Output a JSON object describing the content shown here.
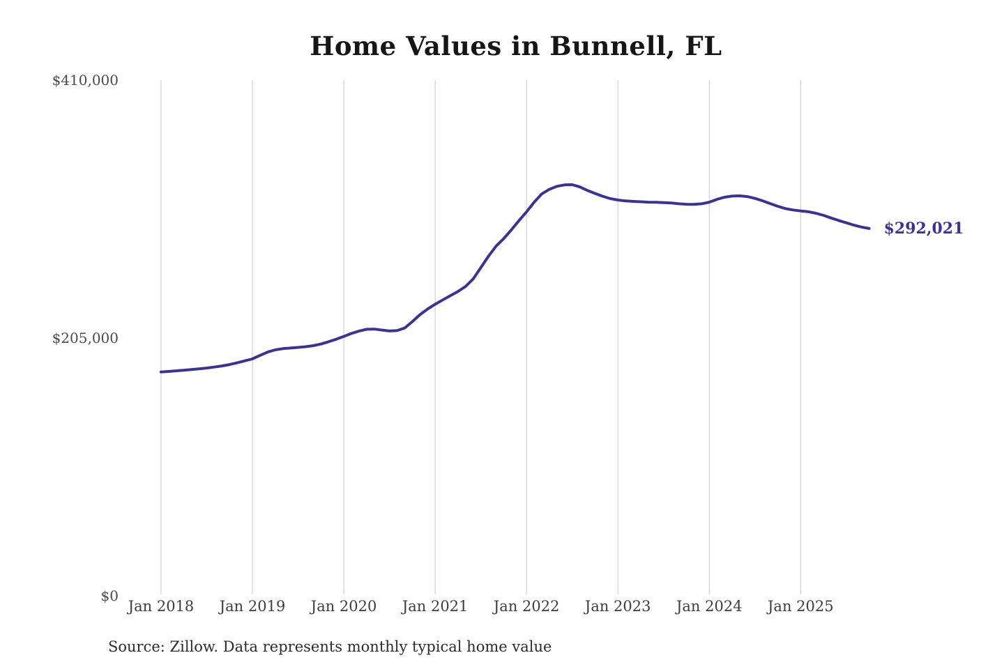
{
  "title": "Home Values in Bunnell, FL",
  "source_note": "Source: Zillow. Data represents monthly typical home value",
  "colors": {
    "line": "#3b3299",
    "end_label_text": "#3b3299",
    "grid": "#c9c9c9",
    "axis_text": "#4a4a4a",
    "title_text": "#161616"
  },
  "chart_data": {
    "type": "line",
    "title": "Home Values in Bunnell, FL",
    "xlabel": "",
    "ylabel": "",
    "x_start": "2018-01",
    "x_end": "2025-10",
    "x_interval": "1 month",
    "point_count": 94,
    "ylim": [
      0,
      410000
    ],
    "grid": "vertical-only",
    "legend": "none",
    "end_label": "$292,021",
    "end_value": 292021,
    "y_ticks": [
      {
        "label": "$0",
        "value": 0
      },
      {
        "label": "$205,000",
        "value": 205000
      },
      {
        "label": "$410,000",
        "value": 410000
      }
    ],
    "x_tick_labels": [
      "Jan 2018",
      "Jan 2019",
      "Jan 2020",
      "Jan 2021",
      "Jan 2022",
      "Jan 2023",
      "Jan 2024",
      "Jan 2025"
    ],
    "series": [
      {
        "name": "Monthly typical home value",
        "values": [
          178000,
          178400,
          178900,
          179400,
          179900,
          180500,
          181100,
          181900,
          182800,
          183900,
          185300,
          186800,
          188400,
          191200,
          193800,
          195600,
          196500,
          197000,
          197500,
          198100,
          198900,
          200200,
          202000,
          204000,
          206300,
          208600,
          210500,
          211900,
          212100,
          211300,
          210600,
          210900,
          213000,
          218000,
          223500,
          228000,
          231800,
          235300,
          238700,
          242000,
          246000,
          252000,
          261000,
          270000,
          278000,
          284000,
          290900,
          298300,
          305300,
          313000,
          319500,
          323200,
          325600,
          326700,
          326900,
          325100,
          322300,
          319900,
          317700,
          315800,
          314700,
          314000,
          313600,
          313300,
          313000,
          312900,
          312600,
          312300,
          311700,
          311300,
          311200,
          311700,
          313000,
          315200,
          316900,
          317800,
          318000,
          317400,
          316000,
          314100,
          311900,
          309700,
          307900,
          306800,
          306000,
          305400,
          304200,
          302500,
          300400,
          298400,
          296600,
          294700,
          293200,
          292021
        ]
      }
    ]
  }
}
